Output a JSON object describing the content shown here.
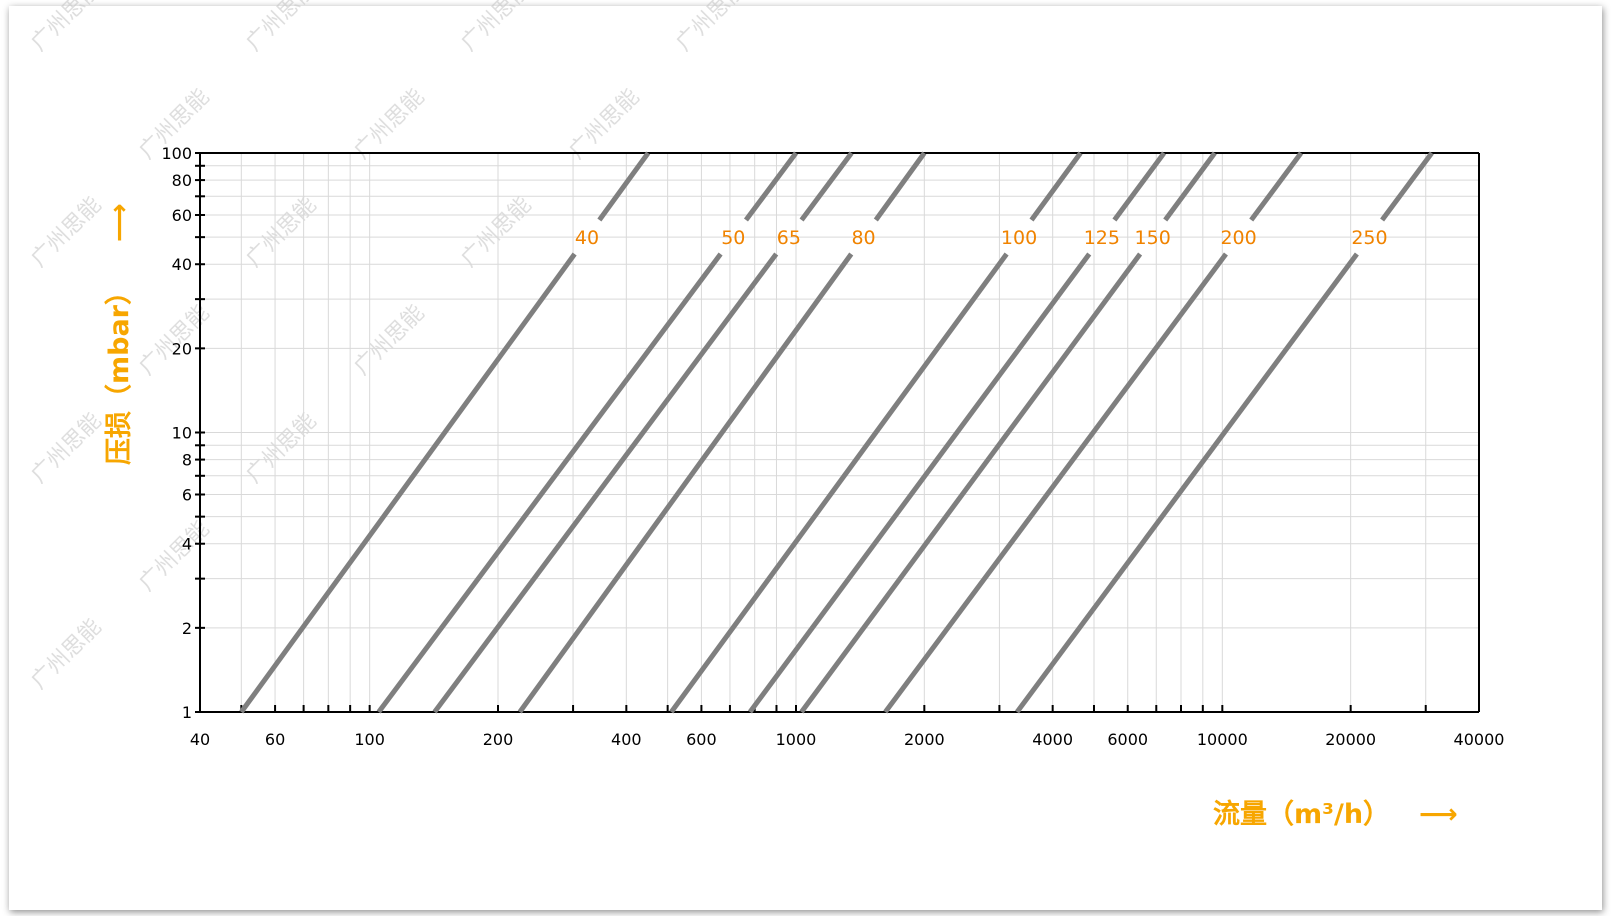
{
  "chart_data": {
    "type": "line",
    "xlabel": "流量（m³/h）",
    "ylabel": "压损（mbar）",
    "x_arrow": "⟶",
    "y_arrow": "⟶",
    "xscale": "log",
    "yscale": "log",
    "xlim": [
      40,
      40000
    ],
    "ylim": [
      1,
      100
    ],
    "grid": true,
    "x_tick_labels": [
      "40",
      "60",
      "100",
      "200",
      "400",
      "600",
      "1000",
      "2000",
      "4000",
      "6000",
      "10000",
      "20000",
      "40000"
    ],
    "y_tick_labels": [
      "1",
      "2",
      "4",
      "6",
      "8",
      "10",
      "20",
      "40",
      "60",
      "80",
      "100"
    ],
    "series": [
      {
        "name": "40",
        "x": [
          50,
          450
        ],
        "y": [
          1,
          100
        ]
      },
      {
        "name": "50",
        "x": [
          105,
          1000
        ],
        "y": [
          1,
          100
        ]
      },
      {
        "name": "65",
        "x": [
          142,
          1350
        ],
        "y": [
          1,
          100
        ]
      },
      {
        "name": "80",
        "x": [
          225,
          2000
        ],
        "y": [
          1,
          100
        ]
      },
      {
        "name": "100",
        "x": [
          510,
          4650
        ],
        "y": [
          1,
          100
        ]
      },
      {
        "name": "125",
        "x": [
          780,
          7300
        ],
        "y": [
          1,
          100
        ]
      },
      {
        "name": "150",
        "x": [
          1030,
          9600
        ],
        "y": [
          1,
          100
        ]
      },
      {
        "name": "200",
        "x": [
          1620,
          15300
        ],
        "y": [
          1,
          100
        ]
      },
      {
        "name": "250",
        "x": [
          3300,
          31000
        ],
        "y": [
          1,
          100
        ]
      }
    ],
    "colors": {
      "line": "#7f7f7f",
      "series_label": "#f08300",
      "axis_title": "#f7a600",
      "grid": "#d9d9d9"
    }
  },
  "watermark": {
    "text": "广州思能"
  }
}
